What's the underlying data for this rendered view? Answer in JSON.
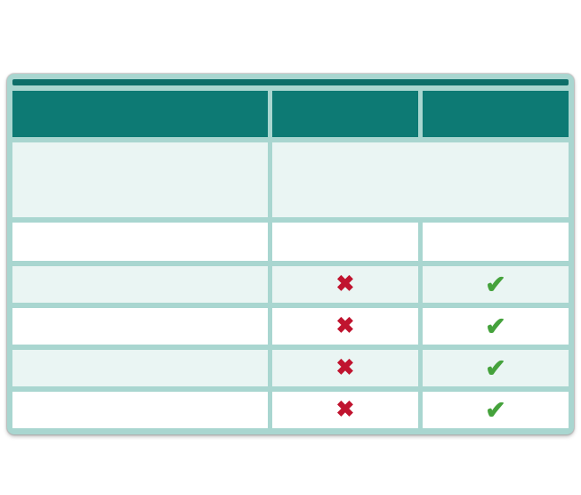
{
  "table": {
    "top_stripe": "",
    "header": {
      "columns": [
        {
          "label": ""
        },
        {
          "label": ""
        },
        {
          "label": ""
        }
      ]
    },
    "intro_row": {
      "col1": "",
      "col2_3_merged": ""
    },
    "label_row": {
      "col1": "",
      "col2": "",
      "col3": ""
    },
    "data_rows": [
      {
        "col1": "",
        "col2_icon": "cross",
        "col3_icon": "check"
      },
      {
        "col1": "",
        "col2_icon": "cross",
        "col3_icon": "check"
      },
      {
        "col1": "",
        "col2_icon": "cross",
        "col3_icon": "check"
      },
      {
        "col1": "",
        "col2_icon": "cross",
        "col3_icon": "check"
      }
    ]
  },
  "icons": {
    "cross": "✖",
    "check": "✔"
  },
  "colors": {
    "frame_border": "#a9d6d0",
    "top_stripe": "#0c6e69",
    "header_teal": "#0d7a74",
    "mint_row": "#eaf5f3",
    "white_row": "#ffffff",
    "cross_red": "#c0142f",
    "check_green": "#45a23c",
    "page_background": "#ffffff"
  }
}
